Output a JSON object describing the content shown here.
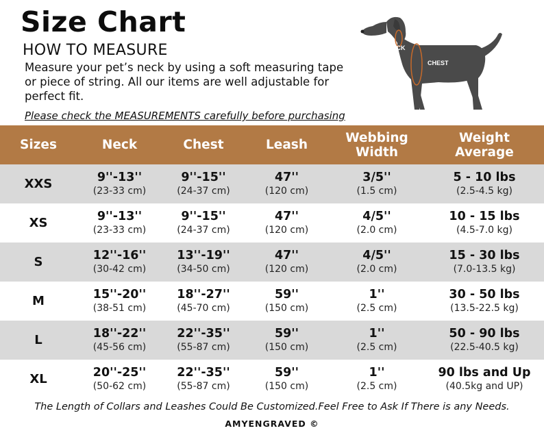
{
  "title": "Size Chart",
  "how_to": "HOW TO MEASURE",
  "description": "Measure your pet’s neck by using a soft measuring tape or piece of string. All our items are well adjustable for perfect fit.",
  "note": "Please check the MEASUREMENTS carefully before purchasing",
  "dog_labels": {
    "neck": "NECK",
    "chest": "CHEST"
  },
  "colors": {
    "header_bg": "#b27a45",
    "shaded_row": "#d9d9d9",
    "dog": "#4a4a4a",
    "measure_line": "#c86a2a"
  },
  "headers": [
    "Sizes",
    "Neck",
    "Chest",
    "Leash",
    "Webbing Width",
    "Weight Average"
  ],
  "header_lines": {
    "webbing": [
      "Webbing",
      "Width"
    ],
    "weight": [
      "Weight",
      "Average"
    ]
  },
  "rows": [
    {
      "size": "XXS",
      "neck": "9''-13''",
      "neck_cm": "(23-33 cm)",
      "chest": "9''-15''",
      "chest_cm": "(24-37 cm)",
      "leash": "47''",
      "leash_cm": "(120 cm)",
      "webbing": "3/5''",
      "webbing_cm": "(1.5 cm)",
      "weight": "5 - 10 lbs",
      "weight_kg": "(2.5-4.5 kg)"
    },
    {
      "size": "XS",
      "neck": "9''-13''",
      "neck_cm": "(23-33 cm)",
      "chest": "9''-15''",
      "chest_cm": "(24-37 cm)",
      "leash": "47''",
      "leash_cm": "(120 cm)",
      "webbing": "4/5''",
      "webbing_cm": "(2.0 cm)",
      "weight": "10 - 15 lbs",
      "weight_kg": "(4.5-7.0 kg)"
    },
    {
      "size": "S",
      "neck": "12''-16''",
      "neck_cm": "(30-42 cm)",
      "chest": "13''-19''",
      "chest_cm": "(34-50 cm)",
      "leash": "47''",
      "leash_cm": "(120 cm)",
      "webbing": "4/5''",
      "webbing_cm": "(2.0 cm)",
      "weight": "15 - 30 lbs",
      "weight_kg": "(7.0-13.5 kg)"
    },
    {
      "size": "M",
      "neck": "15''-20''",
      "neck_cm": "(38-51 cm)",
      "chest": "18''-27''",
      "chest_cm": "(45-70 cm)",
      "leash": "59''",
      "leash_cm": "(150 cm)",
      "webbing": "1''",
      "webbing_cm": "(2.5 cm)",
      "weight": "30 - 50 lbs",
      "weight_kg": "(13.5-22.5 kg)"
    },
    {
      "size": "L",
      "neck": "18''-22''",
      "neck_cm": "(45-56 cm)",
      "chest": "22''-35''",
      "chest_cm": "(55-87 cm)",
      "leash": "59''",
      "leash_cm": "(150 cm)",
      "webbing": "1''",
      "webbing_cm": "(2.5 cm)",
      "weight": "50 - 90 lbs",
      "weight_kg": "(22.5-40.5 kg)"
    },
    {
      "size": "XL",
      "neck": "20''-25''",
      "neck_cm": "(50-62 cm)",
      "chest": "22''-35''",
      "chest_cm": "(55-87 cm)",
      "leash": "59''",
      "leash_cm": "(150 cm)",
      "webbing": "1''",
      "webbing_cm": "(2.5 cm)",
      "weight": "90 lbs and Up",
      "weight_kg": "(40.5kg and UP)"
    }
  ],
  "footer": "The Length of Collars and Leashes Could Be Customized.Feel Free to Ask If There is any Needs.",
  "brand": "AMYENGRAVED ©"
}
